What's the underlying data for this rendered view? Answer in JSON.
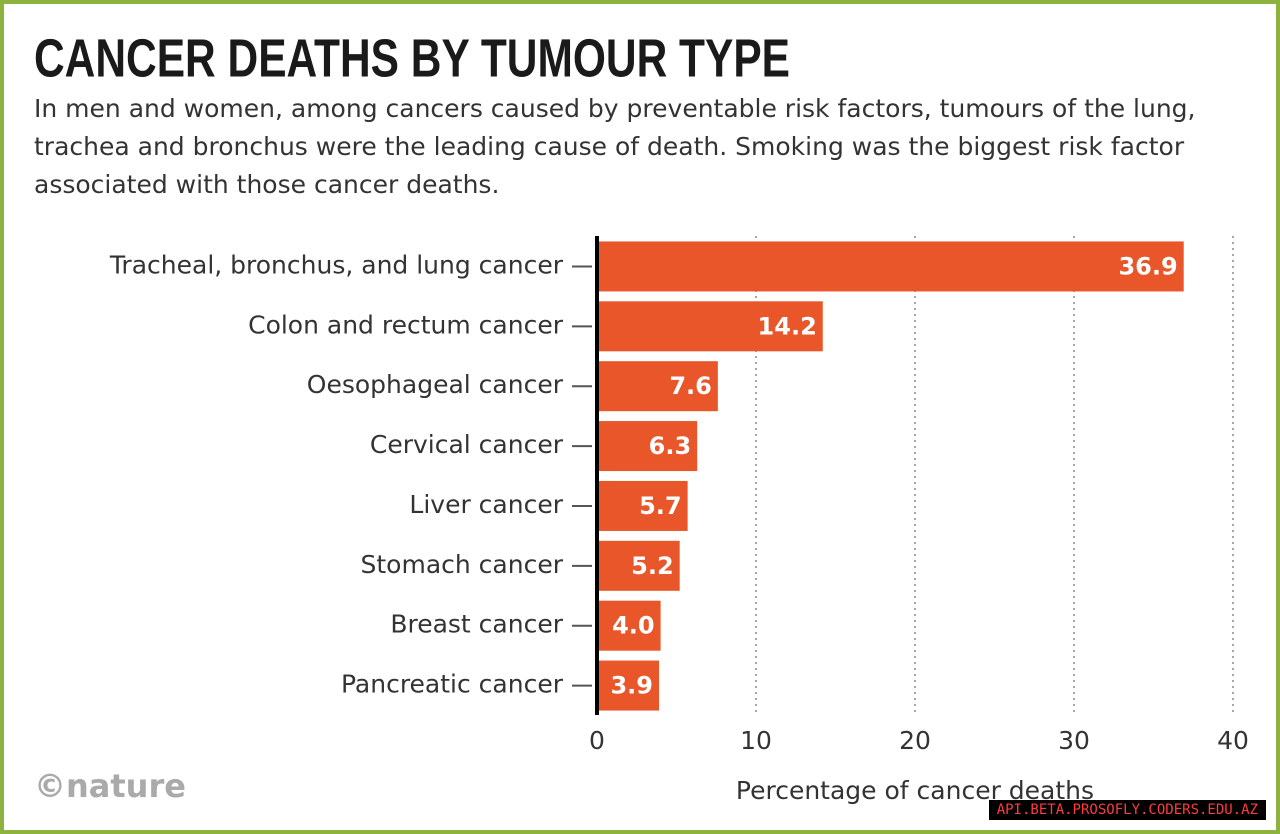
{
  "chart_data": {
    "type": "hbar",
    "title": "CANCER DEATHS BY TUMOUR TYPE",
    "subtitle": "In men and women, among cancers caused by preventable risk factors, tumours of the lung, trachea and bronchus were the leading cause of death. Smoking was the biggest risk factor associated with those cancer deaths.",
    "categories": [
      "Tracheal, bronchus, and lung cancer",
      "Colon and rectum cancer",
      "Oesophageal cancer",
      "Cervical cancer",
      "Liver cancer",
      "Stomach cancer",
      "Breast cancer",
      "Pancreatic cancer"
    ],
    "values": [
      36.9,
      14.2,
      7.6,
      6.3,
      5.7,
      5.2,
      4.0,
      3.9
    ],
    "value_labels": [
      "36.9",
      "14.2",
      "7.6",
      "6.3",
      "5.7",
      "5.2",
      "4.0",
      "3.9"
    ],
    "color": "#e8562a",
    "xlim": [
      0,
      40
    ],
    "xticks": [
      0,
      10,
      20,
      30,
      40
    ],
    "xlabel": "Percentage of cancer deaths",
    "grid": true,
    "source": "©nature",
    "watermark": "API.BETA.PROSOFLY.CODERS.EDU.AZ"
  }
}
